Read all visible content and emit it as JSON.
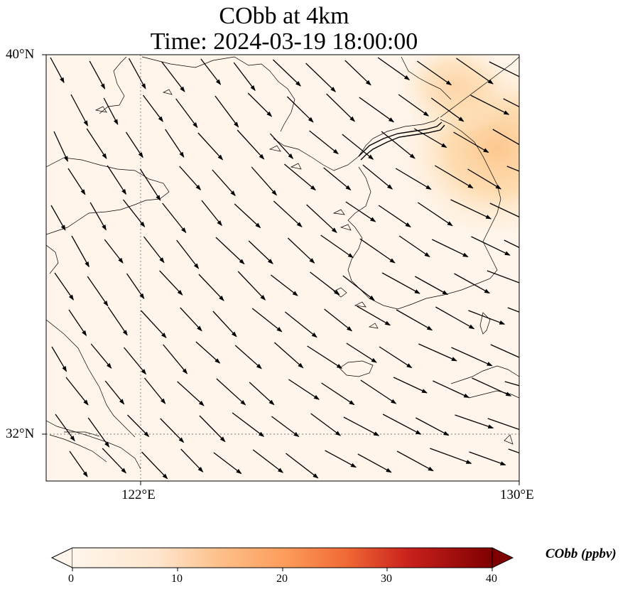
{
  "title_line1": "CObb at 4km",
  "title_line2": "Time: 2024-03-19 18:00:00",
  "lat_ticks": [
    {
      "value": 40,
      "label": "40°N"
    },
    {
      "value": 32,
      "label": "32°N"
    }
  ],
  "lon_ticks": [
    {
      "value": 122,
      "label": "122°E"
    },
    {
      "value": 130,
      "label": "130°E"
    }
  ],
  "extent": {
    "lon_min": 120,
    "lon_max": 130,
    "lat_min": 31,
    "lat_max": 40
  },
  "gridlines": {
    "lons": [
      122
    ],
    "lats": [
      32
    ],
    "style": "dotted"
  },
  "colorbar": {
    "title": "CObb (ppbv)",
    "min": 0,
    "max": 40,
    "ticks": [
      {
        "value": 0,
        "label": "0"
      },
      {
        "value": 10,
        "label": "10"
      },
      {
        "value": 20,
        "label": "20"
      },
      {
        "value": 30,
        "label": "30"
      },
      {
        "value": 40,
        "label": "40"
      }
    ],
    "colors": [
      "#fff5eb",
      "#fdd49e",
      "#fc8d59",
      "#d7301f",
      "#990000",
      "#7f0000"
    ],
    "extend": "both"
  },
  "field": {
    "background_color": "#fff5eb",
    "plume_color": "#fdd49e",
    "plume_center": {
      "lon": 129.8,
      "lat": 37.8
    }
  },
  "wind": {
    "color": "#000000",
    "dominant_direction": "north-west to south-east"
  }
}
